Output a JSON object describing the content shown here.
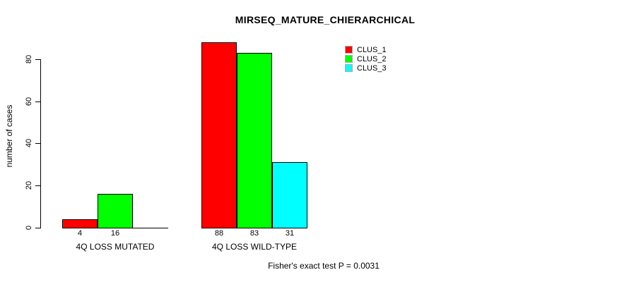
{
  "chart_data": {
    "type": "bar",
    "title": "MIRSEQ_MATURE_CHIERARCHICAL",
    "ylabel": "number of cases",
    "xlabel": "",
    "footer": "Fisher's exact test P = 0.0031",
    "grid": false,
    "legend_position": "top-right-inside",
    "yticks": [
      0,
      20,
      40,
      60,
      80
    ],
    "ylim": [
      0,
      88
    ],
    "categories": [
      "4Q LOSS MUTATED",
      "4Q LOSS WILD-TYPE"
    ],
    "series": [
      {
        "name": "CLUS_1",
        "color": "#ff0000",
        "values": [
          4,
          88
        ]
      },
      {
        "name": "CLUS_2",
        "color": "#00ff00",
        "values": [
          16,
          83
        ]
      },
      {
        "name": "CLUS_3",
        "color": "#00ffff",
        "values": [
          0,
          31
        ]
      }
    ],
    "bar_value_labels": [
      [
        "4",
        "16",
        ""
      ],
      [
        "88",
        "83",
        "31"
      ]
    ]
  }
}
